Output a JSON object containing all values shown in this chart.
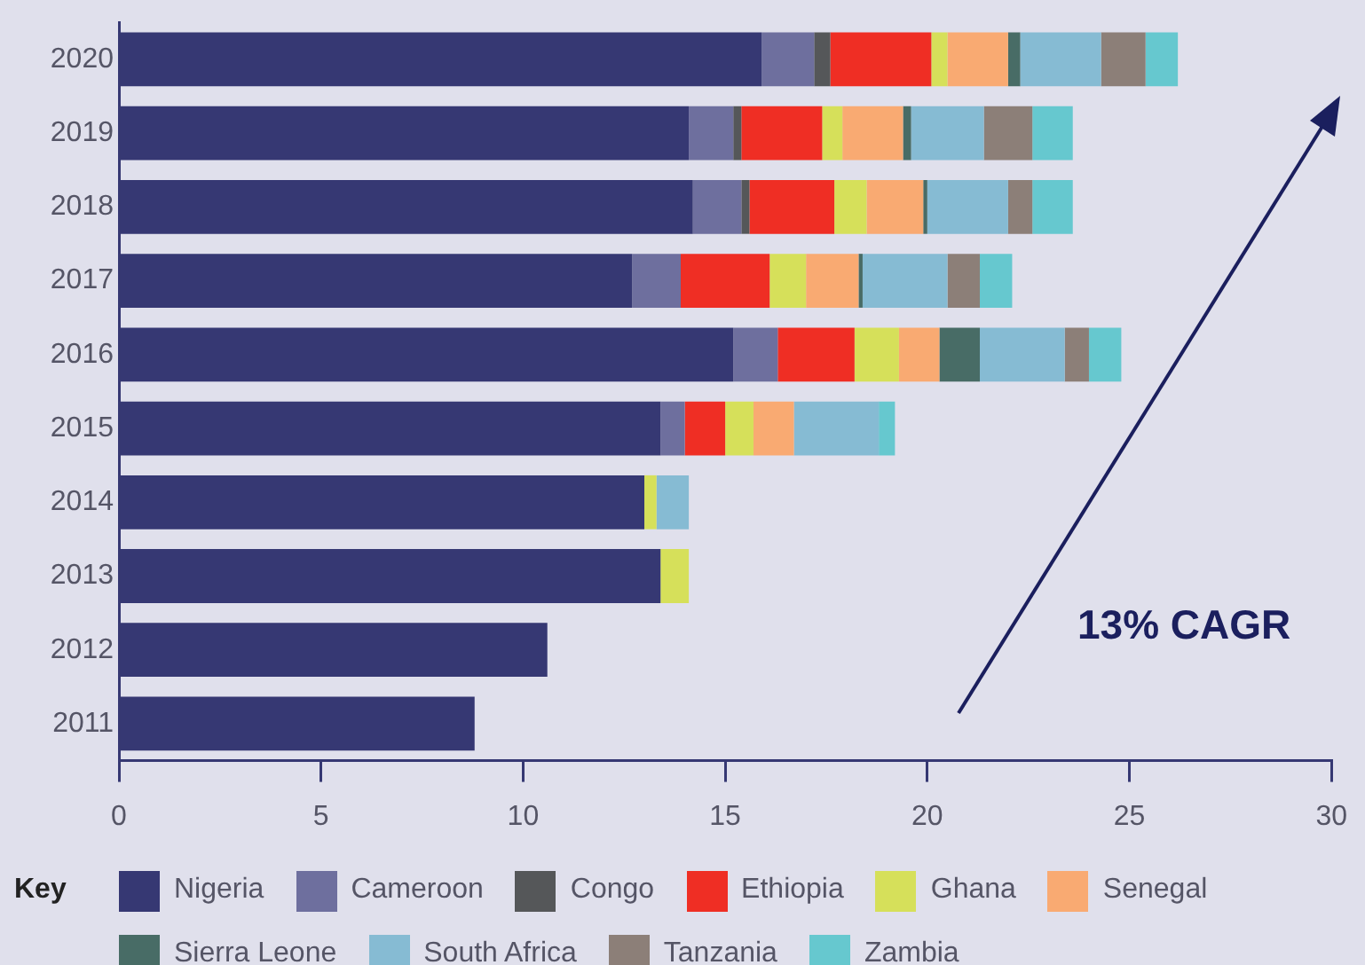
{
  "chart_data": {
    "type": "bar",
    "orientation": "horizontal",
    "stacked": true,
    "legend_title": "Key",
    "legend": "bottom",
    "grid": false,
    "categories": [
      "2020",
      "2019",
      "2018",
      "2017",
      "2016",
      "2015",
      "2014",
      "2013",
      "2012",
      "2011"
    ],
    "xlim": [
      0,
      30
    ],
    "xticks": [
      0,
      5,
      10,
      15,
      20,
      25,
      30
    ],
    "annotations": [
      "13% CAGR"
    ],
    "series": [
      {
        "name": "Nigeria",
        "color": "#363873",
        "values": [
          15.9,
          14.1,
          14.2,
          12.7,
          15.2,
          13.4,
          13.0,
          13.4,
          10.6,
          8.8
        ]
      },
      {
        "name": "Cameroon",
        "color": "#6e6f9e",
        "values": [
          1.3,
          1.1,
          1.2,
          1.2,
          1.1,
          0.6,
          null,
          null,
          null,
          null
        ]
      },
      {
        "name": "Congo",
        "color": "#555759",
        "values": [
          0.4,
          0.2,
          0.2,
          null,
          null,
          null,
          null,
          null,
          null,
          null
        ]
      },
      {
        "name": "Ethiopia",
        "color": "#ef2e24",
        "values": [
          2.5,
          2.0,
          2.1,
          2.2,
          1.9,
          1.0,
          null,
          null,
          null,
          null
        ]
      },
      {
        "name": "Ghana",
        "color": "#d6e05a",
        "values": [
          0.4,
          0.5,
          0.8,
          0.9,
          1.1,
          0.7,
          0.3,
          0.7,
          null,
          null
        ]
      },
      {
        "name": "Senegal",
        "color": "#f9aa72",
        "values": [
          1.5,
          1.5,
          1.4,
          1.3,
          1.0,
          1.0,
          null,
          null,
          null,
          null
        ]
      },
      {
        "name": "Sierra Leone",
        "color": "#486c66",
        "values": [
          0.3,
          0.2,
          0.1,
          0.1,
          1.0,
          null,
          null,
          null,
          null,
          null
        ]
      },
      {
        "name": "South Africa",
        "color": "#86bbd3",
        "values": [
          2.0,
          1.8,
          2.0,
          2.1,
          2.1,
          2.1,
          0.8,
          null,
          null,
          null
        ]
      },
      {
        "name": "Tanzania",
        "color": "#8c7f78",
        "values": [
          1.1,
          1.2,
          0.6,
          0.8,
          0.6,
          null,
          null,
          null,
          null,
          null
        ]
      },
      {
        "name": "Zambia",
        "color": "#66c8cf",
        "values": [
          0.8,
          1.0,
          1.0,
          0.8,
          0.8,
          0.4,
          null,
          null,
          null,
          null
        ]
      }
    ]
  }
}
